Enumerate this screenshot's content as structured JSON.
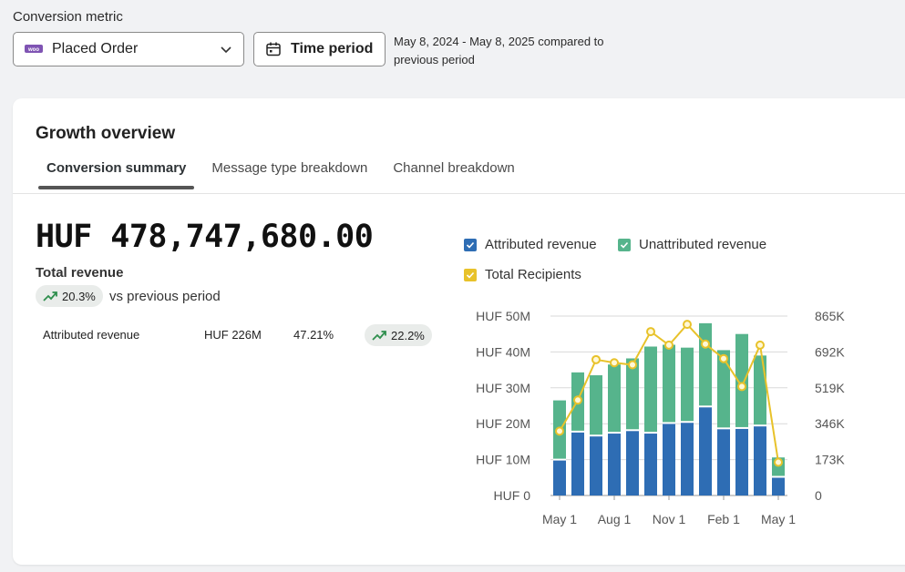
{
  "header": {
    "metric_label": "Conversion metric",
    "metric_value": "Placed Order",
    "metric_icon": "woo-icon",
    "time_button": "Time period",
    "date_line1": "May 8, 2024 - May 8, 2025 compared to",
    "date_line2": "previous period"
  },
  "card": {
    "title": "Growth overview",
    "tabs": [
      {
        "label": "Conversion summary",
        "active": true
      },
      {
        "label": "Message type breakdown",
        "active": false
      },
      {
        "label": "Channel breakdown",
        "active": false
      }
    ],
    "total_value": "HUF 478,747,680.00",
    "total_label": "Total revenue",
    "total_change": "20.3%",
    "vs_text": "vs previous period",
    "attributed_row": {
      "label": "Attributed revenue",
      "amount": "HUF 226M",
      "share": "47.21%",
      "change": "22.2%"
    }
  },
  "legend": {
    "attributed": "Attributed revenue",
    "unattributed": "Unattributed revenue",
    "recipients": "Total Recipients"
  },
  "colors": {
    "attributed": "#2e6db4",
    "unattributed": "#56b48c",
    "recipients": "#e8c22a",
    "up_trend": "#2f8f4e"
  },
  "chart_data": {
    "type": "bar",
    "stacked": true,
    "x_ticks": [
      "May 1",
      "Aug 1",
      "Nov 1",
      "Feb 1",
      "May 1"
    ],
    "series": [
      {
        "name": "Attributed revenue",
        "values": [
          10,
          17.8,
          16.7,
          17.5,
          18.2,
          17.5,
          20.2,
          20.5,
          24.8,
          18.7,
          18.8,
          19.5,
          5.2
        ]
      },
      {
        "name": "Unattributed revenue",
        "values": [
          16.5,
          16.5,
          16.8,
          19,
          20,
          24,
          21.8,
          20.7,
          23.2,
          21.8,
          26.2,
          19.5,
          5.4
        ]
      },
      {
        "name": "Total Recipients",
        "axis": "right",
        "values": [
          310000,
          460000,
          655000,
          640000,
          630000,
          790000,
          725000,
          825000,
          730000,
          660000,
          525000,
          725000,
          160000
        ]
      }
    ],
    "y_left": {
      "ticks": [
        "HUF 0",
        "HUF 10M",
        "HUF 20M",
        "HUF 30M",
        "HUF 40M",
        "HUF 50M"
      ],
      "min": 0,
      "max": 50
    },
    "y_right": {
      "ticks": [
        "0",
        "173K",
        "346K",
        "519K",
        "692K",
        "865K"
      ],
      "min": 0,
      "max": 865000
    },
    "grid": true,
    "legend_position": "top"
  }
}
